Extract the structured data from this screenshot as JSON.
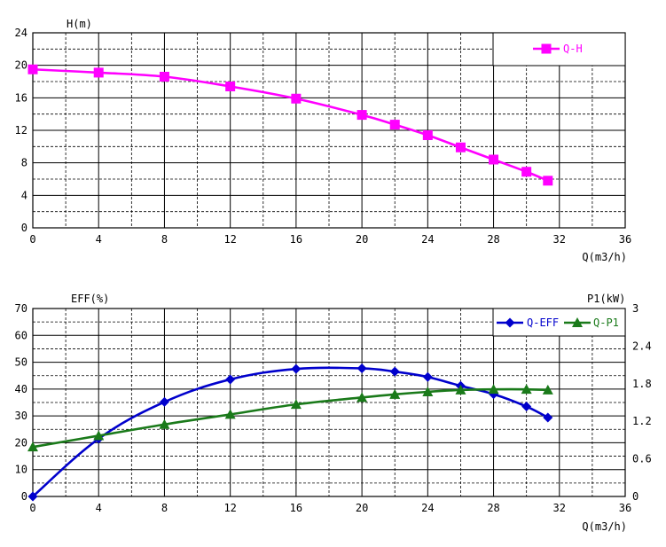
{
  "chart_data": [
    {
      "type": "line",
      "ylabel": "H(m)",
      "xlabel": "Q(m3/h)",
      "xlim": [
        0,
        36
      ],
      "ylim": [
        0,
        24
      ],
      "xticks": [
        0,
        4,
        8,
        12,
        16,
        20,
        24,
        28,
        32,
        36
      ],
      "yticks": [
        0,
        4,
        8,
        12,
        16,
        20,
        24
      ],
      "grid": true,
      "legend_position": "top-right",
      "series": [
        {
          "name": "Q-H",
          "color": "#ff00ff",
          "marker": "square",
          "x": [
            0,
            4,
            8,
            12,
            16,
            20,
            22,
            24,
            26,
            28,
            30,
            31.3
          ],
          "y": [
            19.5,
            19.1,
            18.6,
            17.4,
            15.9,
            13.9,
            12.7,
            11.4,
            9.9,
            8.4,
            6.9,
            5.8
          ]
        }
      ]
    },
    {
      "type": "line",
      "ylabel": "EFF(%)",
      "y2label": "P1(kW)",
      "xlabel": "Q(m3/h)",
      "xlim": [
        0,
        36
      ],
      "ylim": [
        0,
        70
      ],
      "y2lim": [
        0,
        3
      ],
      "xticks": [
        0,
        4,
        8,
        12,
        16,
        20,
        24,
        28,
        32,
        36
      ],
      "yticks": [
        0,
        10,
        20,
        30,
        40,
        50,
        60,
        70
      ],
      "y2ticks": [
        "0",
        "0.6",
        "1.2",
        "1.8",
        "2.4",
        "3"
      ],
      "grid": true,
      "legend_position": "top-right",
      "series": [
        {
          "name": "Q-EFF",
          "color": "#0000cc",
          "marker": "diamond",
          "axis": "left",
          "x": [
            0,
            4,
            8,
            12,
            16,
            20,
            22,
            24,
            26,
            28,
            30,
            31.3
          ],
          "y": [
            0,
            21.5,
            35.2,
            43.6,
            47.5,
            47.7,
            46.5,
            44.5,
            41.2,
            38.1,
            33.5,
            29.4
          ]
        },
        {
          "name": "Q-P1",
          "color": "#1a7a1a",
          "marker": "triangle",
          "axis": "right",
          "x": [
            0,
            4,
            8,
            12,
            16,
            20,
            22,
            24,
            26,
            28,
            30,
            31.3
          ],
          "y": [
            0.79,
            0.97,
            1.15,
            1.31,
            1.47,
            1.58,
            1.63,
            1.67,
            1.7,
            1.71,
            1.71,
            1.7
          ]
        }
      ]
    }
  ]
}
